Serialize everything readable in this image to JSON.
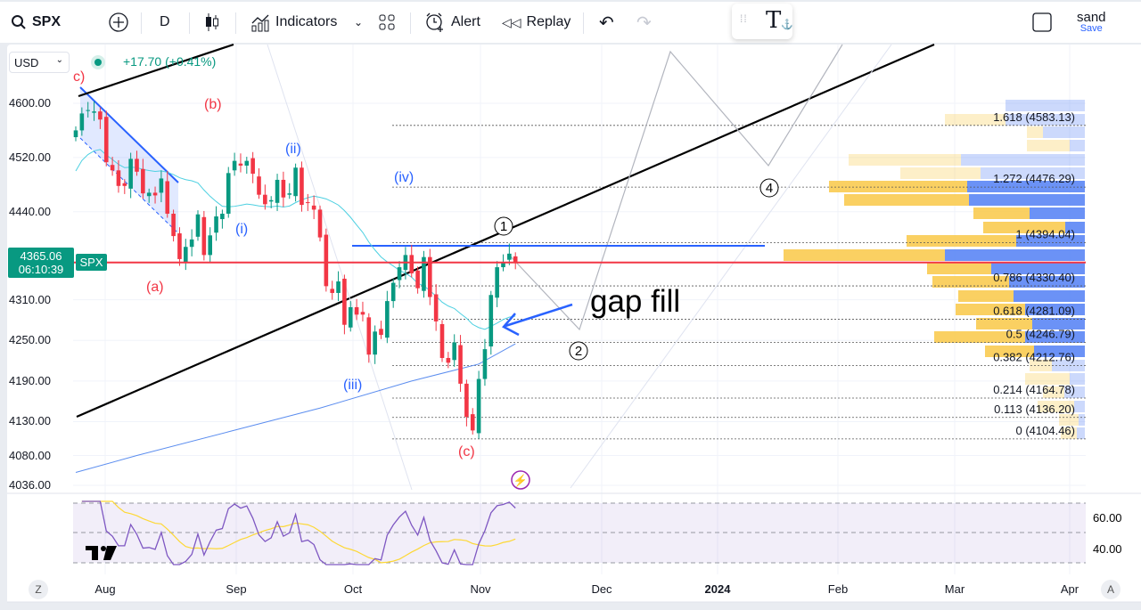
{
  "toolbar": {
    "symbol": "SPX",
    "interval": "D",
    "indicators": "Indicators",
    "alert": "Alert",
    "replay": "Replay",
    "user": "sand",
    "save": "Save"
  },
  "legend": {
    "currency": "USD",
    "change": "+17.70 (+0.41%)"
  },
  "price_axis": [
    {
      "label": "4600.00",
      "v": 4600
    },
    {
      "label": "4520.00",
      "v": 4520
    },
    {
      "label": "4440.00",
      "v": 4440
    },
    {
      "label": "4310.00",
      "v": 4310
    },
    {
      "label": "4250.00",
      "v": 4250
    },
    {
      "label": "4190.00",
      "v": 4190
    },
    {
      "label": "4130.00",
      "v": 4130
    },
    {
      "label": "4080.00",
      "v": 4080
    },
    {
      "label": "4036.00",
      "v": 4036
    }
  ],
  "last_price": {
    "price": "4365.06",
    "countdown": "06:10:39",
    "symbol": "SPX",
    "v": 4365.06
  },
  "time_axis": [
    "Aug",
    "Sep",
    "Oct",
    "Nov",
    "Dec",
    "2024",
    "Feb",
    "Mar",
    "Apr"
  ],
  "rsi_axis": [
    "60.00",
    "40.00"
  ],
  "fib_levels": [
    {
      "label": "1.618 (4583.13)",
      "v": 4583.13
    },
    {
      "label": "1.272 (4476.29)",
      "v": 4476.29
    },
    {
      "label": "1 (4394.04)",
      "v": 4394.04
    },
    {
      "label": "0.786 (4330.40)",
      "v": 4330.4
    },
    {
      "label": "0.618 (4281.09)",
      "v": 4281.09
    },
    {
      "label": "0.5 (4246.79)",
      "v": 4246.79
    },
    {
      "label": "0.382 (4212.76)",
      "v": 4212.76
    },
    {
      "label": "0.214 (4164.78)",
      "v": 4164.78
    },
    {
      "label": "0.113 (4136.20)",
      "v": 4136.2
    },
    {
      "label": "0 (4104.46)",
      "v": 4104.46
    }
  ],
  "wave_labels": {
    "c_start": "c)",
    "a": "(a)",
    "b": "(b)",
    "c": "(c)",
    "i": "(i)",
    "ii": "(ii)",
    "iii": "(iii)",
    "iv": "(iv)",
    "w1": "1",
    "w2": "2",
    "w4": "4"
  },
  "annotation": "gap fill",
  "bottom": {
    "z": "Z",
    "a": "A"
  },
  "colors": {
    "up": "#089981",
    "down": "#f23645",
    "accent": "#2962ff"
  },
  "closes": [
    4560,
    4585,
    4590,
    4588,
    4576,
    4513,
    4501,
    4478,
    4478,
    4518,
    4499,
    4467,
    4468,
    4464,
    4489,
    4437,
    4404,
    4370,
    4388,
    4399,
    4436,
    4376,
    4405,
    4433,
    4437,
    4497,
    4515,
    4508,
    4515,
    4496,
    4465,
    4451,
    4457,
    4487,
    4461,
    4467,
    4505,
    4450,
    4453,
    4443,
    4402,
    4330,
    4320,
    4337,
    4273,
    4299,
    4288,
    4288,
    4229,
    4263,
    4258,
    4308,
    4335,
    4358,
    4376,
    4349,
    4327,
    4373,
    4314,
    4278,
    4224,
    4217,
    4247,
    4186,
    4137,
    4117,
    4193,
    4237,
    4317,
    4358,
    4365,
    4378,
    4365
  ],
  "sma200": [
    [
      0,
      4055
    ],
    [
      10,
      4080
    ],
    [
      25,
      4115
    ],
    [
      40,
      4150
    ],
    [
      55,
      4190
    ],
    [
      66,
      4215
    ],
    [
      72,
      4245
    ]
  ]
}
